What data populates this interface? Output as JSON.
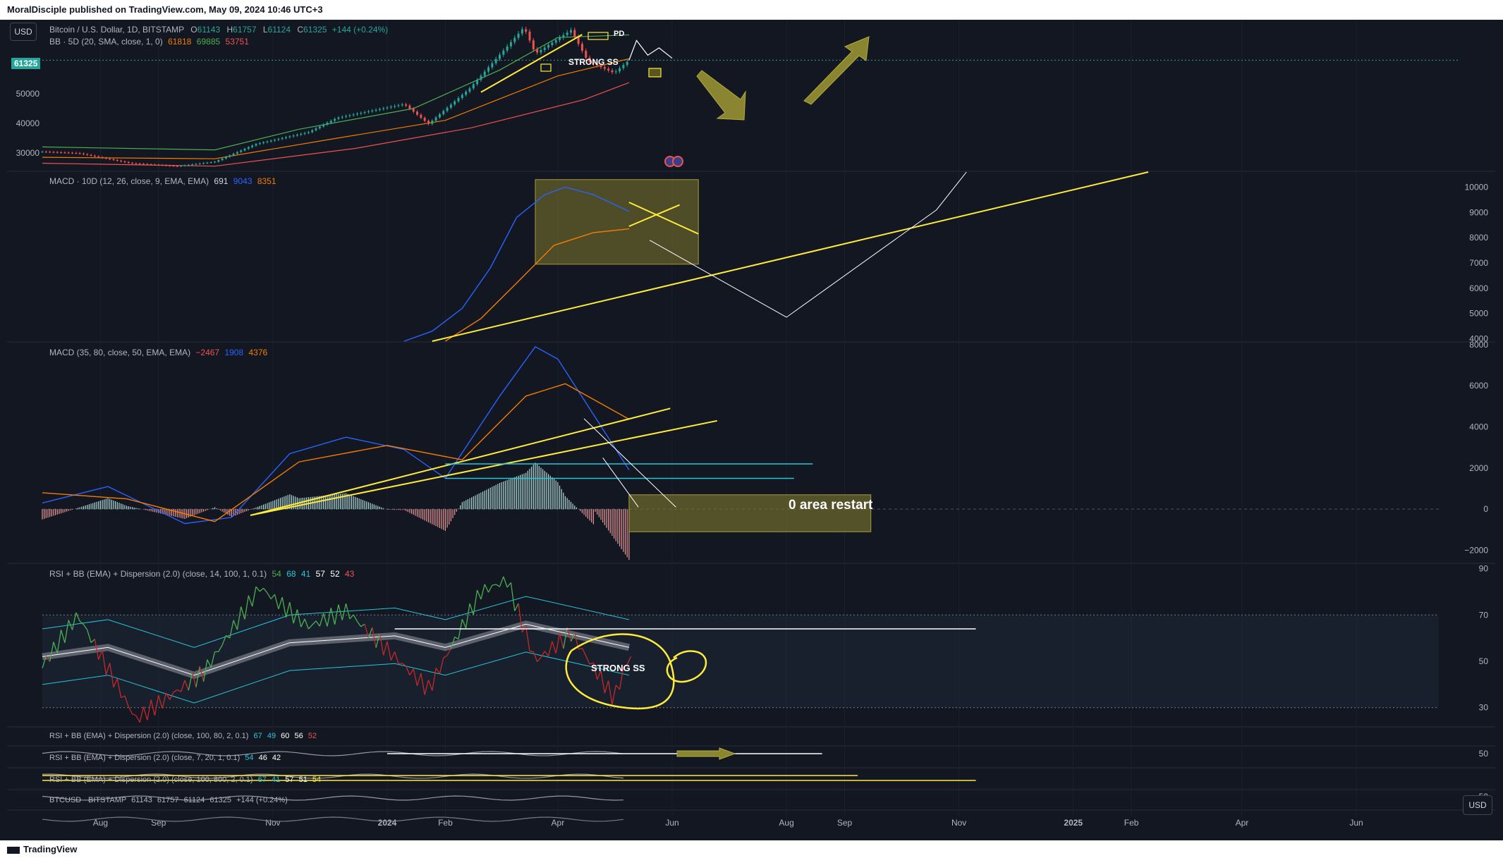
{
  "header": {
    "published": "MoralDisciple published on TradingView.com, May 09, 2024 10:46 UTC+3"
  },
  "footer": {
    "brand": "TradingView"
  },
  "currency_button": "USD",
  "price_tag": "61325",
  "main_legend": {
    "title": "Bitcoin / U.S. Dollar, 1D, BITSTAMP",
    "ohlc": [
      {
        "k": "O",
        "v": "61143"
      },
      {
        "k": "H",
        "v": "61757"
      },
      {
        "k": "L",
        "v": "61124"
      },
      {
        "k": "C",
        "v": "61325"
      }
    ],
    "change": "+144 (+0.24%)",
    "bb_title": "BB · 5D (20, SMA, close, 1, 0)",
    "bb_values": [
      "61818",
      "69885",
      "53751"
    ]
  },
  "pane2_legend": {
    "title": "MACD · 10D (12, 26, close, 9, EMA, EMA)",
    "values": [
      "691",
      "9043",
      "8351"
    ]
  },
  "pane3_legend": {
    "title": "MACD (35, 80, close, 50, EMA, EMA)",
    "values": [
      "−2467",
      "1908",
      "4376"
    ]
  },
  "pane4_legend": {
    "title": "RSI + BB (EMA) + Dispersion (2.0) (close, 14, 100, 1, 0.1)",
    "values": [
      "54",
      "68",
      "41",
      "57",
      "52",
      "43"
    ]
  },
  "pane5_legend": {
    "title": "RSI + BB (EMA) + Dispersion (2.0) (close, 100, 80, 2, 0.1)",
    "values": [
      "67",
      "49",
      "60",
      "56",
      "52"
    ]
  },
  "pane6_legend": {
    "title": "RSI + BB (EMA) + Dispersion (2.0) (close, 7, 20, 1, 0.1)",
    "values": [
      "54",
      "46",
      "42"
    ]
  },
  "pane7_legend": {
    "title": "RSI + BB (EMA) + Dispersion (2.0) (close, 100, 800, 2, 0.1)",
    "values": [
      "67",
      "41",
      "57",
      "51",
      "54"
    ]
  },
  "pane8_legend": {
    "title": "BTCUSD · BITSTAMP",
    "values": [
      "61143",
      "61757",
      "61124",
      "61325",
      "+144 (+0.24%)"
    ]
  },
  "annotations": {
    "strong_ss_top": "STRONG SS",
    "pd": "PD",
    "zero_restart": "0 area restart",
    "strong_ss_rsi": "STRONG SS"
  },
  "colors": {
    "bg": "#131722",
    "up": "#26a69a",
    "down": "#ef5350",
    "macd": "#2962ff",
    "signal": "#f57c00",
    "drawing": "#ffeb3b",
    "box": "#807a2e",
    "rsi_up": "#4caf50",
    "rsi_down": "#c62828",
    "cyan": "#26c6da"
  },
  "chart_data": [
    {
      "type": "candlestick",
      "title": "Bitcoin / U.S. Dollar, 1D, BITSTAMP",
      "x_range": [
        "2023-07-01",
        "2025-07-15"
      ],
      "x_ticks": [
        "Aug",
        "Sep",
        "Nov",
        "2024",
        "Feb",
        "Apr",
        "Jun",
        "Aug",
        "Sep",
        "Nov",
        "2025",
        "Feb",
        "Apr",
        "Jun"
      ],
      "y_ticks": [
        30000,
        40000,
        50000
      ],
      "ylim": [
        24000,
        75000
      ],
      "last_price": 61325,
      "price_path": [
        {
          "date": "2023-07-01",
          "value": 30400
        },
        {
          "date": "2023-07-20",
          "value": 29900
        },
        {
          "date": "2023-08-17",
          "value": 26500
        },
        {
          "date": "2023-09-11",
          "value": 25500
        },
        {
          "date": "2023-10-01",
          "value": 27000
        },
        {
          "date": "2023-10-23",
          "value": 33000
        },
        {
          "date": "2023-11-20",
          "value": 37000
        },
        {
          "date": "2023-12-05",
          "value": 41800
        },
        {
          "date": "2024-01-10",
          "value": 46500
        },
        {
          "date": "2024-01-23",
          "value": 39800
        },
        {
          "date": "2024-02-14",
          "value": 51800
        },
        {
          "date": "2024-03-05",
          "value": 66000
        },
        {
          "date": "2024-03-14",
          "value": 72500
        },
        {
          "date": "2024-03-20",
          "value": 63500
        },
        {
          "date": "2024-04-08",
          "value": 71500
        },
        {
          "date": "2024-04-17",
          "value": 61000
        },
        {
          "date": "2024-05-01",
          "value": 57000
        },
        {
          "date": "2024-05-09",
          "value": 61325
        }
      ],
      "bb_upper": [
        {
          "date": "2023-07-01",
          "value": 32000
        },
        {
          "date": "2023-10-01",
          "value": 31000
        },
        {
          "date": "2023-11-15",
          "value": 38000
        },
        {
          "date": "2024-01-15",
          "value": 45000
        },
        {
          "date": "2024-03-01",
          "value": 58000
        },
        {
          "date": "2024-04-01",
          "value": 69000
        },
        {
          "date": "2024-05-09",
          "value": 69885
        }
      ],
      "bb_middle": [
        {
          "date": "2023-07-01",
          "value": 28500
        },
        {
          "date": "2023-10-01",
          "value": 28000
        },
        {
          "date": "2023-12-01",
          "value": 34500
        },
        {
          "date": "2024-02-01",
          "value": 41000
        },
        {
          "date": "2024-04-01",
          "value": 56000
        },
        {
          "date": "2024-05-09",
          "value": 61818
        }
      ],
      "bb_lower": [
        {
          "date": "2023-07-01",
          "value": 26500
        },
        {
          "date": "2023-10-01",
          "value": 25500
        },
        {
          "date": "2023-12-15",
          "value": 31500
        },
        {
          "date": "2024-02-15",
          "value": 38500
        },
        {
          "date": "2024-04-15",
          "value": 48000
        },
        {
          "date": "2024-05-09",
          "value": 53751
        }
      ]
    },
    {
      "type": "line",
      "title": "MACD · 10D (12, 26, close, 9, EMA, EMA)",
      "y_ticks": [
        4000,
        5000,
        6000,
        7000,
        8000,
        9000,
        10000
      ],
      "ylim": [
        3900,
        10600
      ],
      "series": [
        {
          "name": "",
          "values": [
            {
              "date": "2024-01-10",
              "value": 3900
            },
            {
              "date": "2024-01-25",
              "value": 4300
            },
            {
              "date": "2024-02-10",
              "value": 5200
            },
            {
              "date": "2024-02-25",
              "value": 6800
            },
            {
              "date": "2024-03-10",
              "value": 8800
            },
            {
              "date": "2024-03-25",
              "value": 9700
            },
            {
              "date": "2024-04-05",
              "value": 10000
            },
            {
              "date": "2024-04-20",
              "value": 9700
            },
            {
              "date": "2024-05-09",
              "value": 9043
            }
          ]
        },
        {
          "name": "",
          "values": [
            {
              "date": "2024-02-01",
              "value": 3900
            },
            {
              "date": "2024-02-20",
              "value": 4800
            },
            {
              "date": "2024-03-10",
              "value": 6200
            },
            {
              "date": "2024-03-30",
              "value": 7700
            },
            {
              "date": "2024-04-20",
              "value": 8200
            },
            {
              "date": "2024-05-09",
              "value": 8351
            }
          ]
        }
      ]
    },
    {
      "type": "line",
      "title": "MACD (35, 80, close, 50, EMA, EMA)",
      "y_ticks": [
        -2000,
        0,
        2000,
        4000,
        6000,
        8000
      ],
      "ylim": [
        -2600,
        8100
      ],
      "histogram_last": -2467,
      "series": [
        {
          "name": "",
          "values": [
            {
              "date": "2023-07-01",
              "value": 300
            },
            {
              "date": "2023-08-05",
              "value": 1100
            },
            {
              "date": "2023-09-15",
              "value": -700
            },
            {
              "date": "2023-10-10",
              "value": -400
            },
            {
              "date": "2023-11-10",
              "value": 2700
            },
            {
              "date": "2023-12-10",
              "value": 3500
            },
            {
              "date": "2024-01-10",
              "value": 2900
            },
            {
              "date": "2024-02-01",
              "value": 1500
            },
            {
              "date": "2024-03-01",
              "value": 5500
            },
            {
              "date": "2024-03-20",
              "value": 7900
            },
            {
              "date": "2024-04-01",
              "value": 7300
            },
            {
              "date": "2024-05-09",
              "value": 1908
            }
          ]
        },
        {
          "name": "",
          "values": [
            {
              "date": "2023-07-01",
              "value": 800
            },
            {
              "date": "2023-08-15",
              "value": 500
            },
            {
              "date": "2023-10-01",
              "value": -600
            },
            {
              "date": "2023-11-15",
              "value": 2300
            },
            {
              "date": "2024-01-01",
              "value": 3100
            },
            {
              "date": "2024-02-10",
              "value": 2400
            },
            {
              "date": "2024-03-15",
              "value": 5500
            },
            {
              "date": "2024-04-05",
              "value": 6100
            },
            {
              "date": "2024-05-09",
              "value": 4376
            }
          ]
        }
      ]
    },
    {
      "type": "line",
      "title": "RSI + BB (EMA) + Dispersion (2.0) (close, 14, 100, 1, 0.1)",
      "y_ticks": [
        30,
        50,
        70,
        90
      ],
      "ylim": [
        22,
        92
      ],
      "series": [
        {
          "name": "",
          "values": [
            {
              "date": "2023-07-01",
              "value": 48
            },
            {
              "date": "2023-07-20",
              "value": 70
            },
            {
              "date": "2023-08-20",
              "value": 25
            },
            {
              "date": "2023-09-25",
              "value": 45
            },
            {
              "date": "2023-10-25",
              "value": 82
            },
            {
              "date": "2023-11-20",
              "value": 65
            },
            {
              "date": "2023-12-10",
              "value": 72
            },
            {
              "date": "2024-01-23",
              "value": 38
            },
            {
              "date": "2024-02-20",
              "value": 80
            },
            {
              "date": "2024-03-05",
              "value": 85
            },
            {
              "date": "2024-03-20",
              "value": 50
            },
            {
              "date": "2024-04-08",
              "value": 62
            },
            {
              "date": "2024-05-01",
              "value": 34
            },
            {
              "date": "2024-05-09",
              "value": 52
            }
          ]
        }
      ]
    }
  ]
}
